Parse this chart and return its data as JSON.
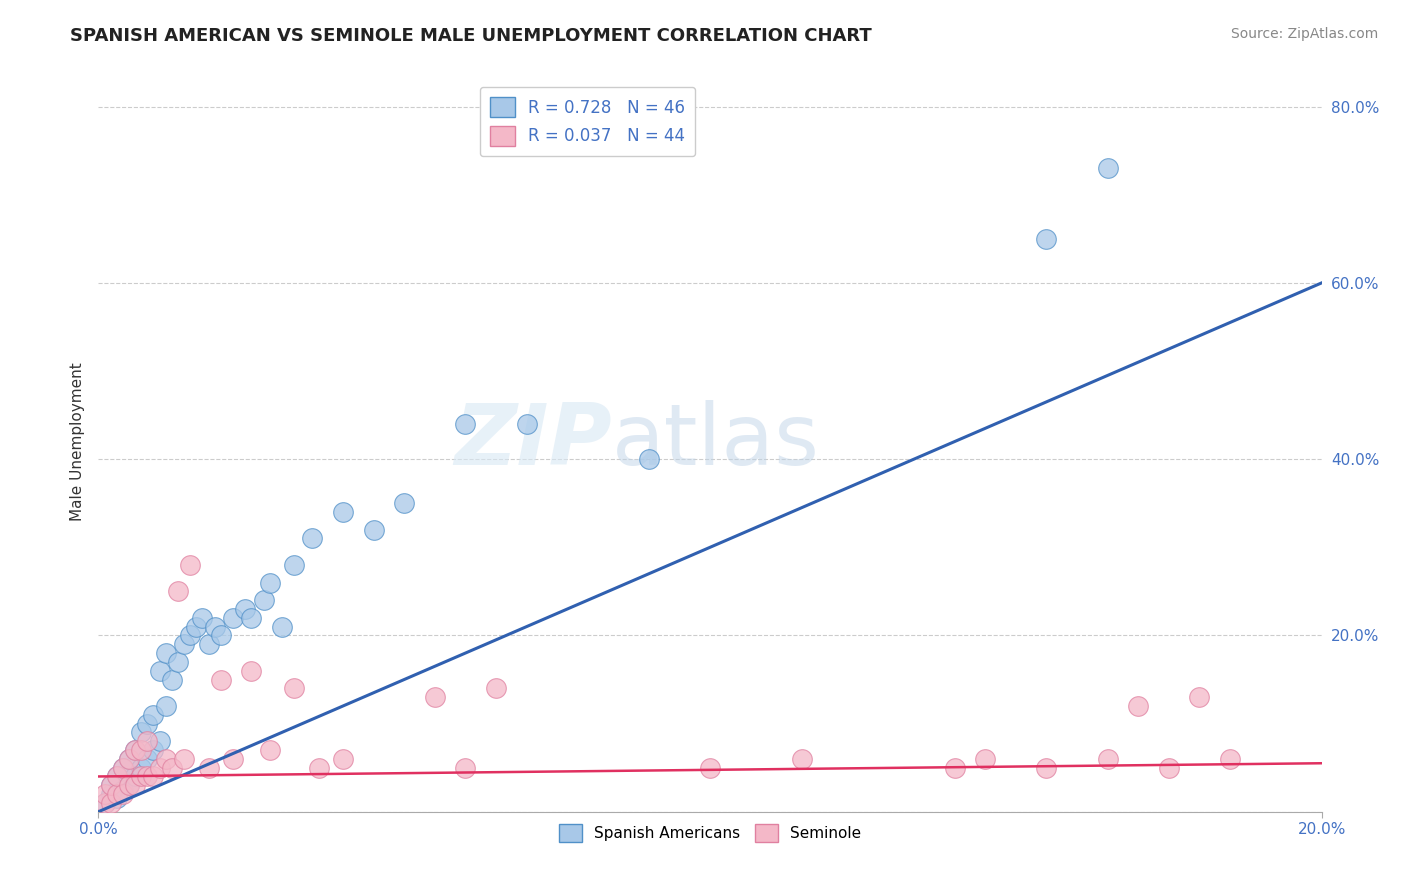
{
  "title": "SPANISH AMERICAN VS SEMINOLE MALE UNEMPLOYMENT CORRELATION CHART",
  "source": "Source: ZipAtlas.com",
  "ylabel": "Male Unemployment",
  "xlim": [
    0.0,
    0.2
  ],
  "ylim": [
    0.0,
    0.84
  ],
  "yticks": [
    0.0,
    0.2,
    0.4,
    0.6,
    0.8
  ],
  "ytick_labels": [
    "",
    "20.0%",
    "40.0%",
    "60.0%",
    "80.0%"
  ],
  "blue_R": 0.728,
  "blue_N": 46,
  "pink_R": 0.037,
  "pink_N": 44,
  "blue_color": "#a8c8e8",
  "pink_color": "#f4b8c8",
  "blue_edge_color": "#5090c8",
  "pink_edge_color": "#e080a0",
  "blue_line_color": "#3060b0",
  "pink_line_color": "#e03060",
  "legend_label_blue": "Spanish Americans",
  "legend_label_pink": "Seminole",
  "blue_line_x": [
    0.0,
    0.2
  ],
  "blue_line_y": [
    0.0,
    0.6
  ],
  "pink_line_x": [
    0.0,
    0.2
  ],
  "pink_line_y": [
    0.04,
    0.055
  ],
  "blue_scatter_x": [
    0.001,
    0.002,
    0.002,
    0.003,
    0.003,
    0.004,
    0.004,
    0.005,
    0.005,
    0.006,
    0.006,
    0.007,
    0.007,
    0.008,
    0.008,
    0.009,
    0.009,
    0.01,
    0.01,
    0.011,
    0.011,
    0.012,
    0.013,
    0.014,
    0.015,
    0.016,
    0.017,
    0.018,
    0.019,
    0.02,
    0.022,
    0.024,
    0.025,
    0.027,
    0.028,
    0.03,
    0.032,
    0.035,
    0.04,
    0.045,
    0.05,
    0.06,
    0.07,
    0.09,
    0.155,
    0.165
  ],
  "blue_scatter_y": [
    0.01,
    0.02,
    0.03,
    0.015,
    0.04,
    0.025,
    0.05,
    0.03,
    0.06,
    0.04,
    0.07,
    0.05,
    0.09,
    0.06,
    0.1,
    0.07,
    0.11,
    0.08,
    0.16,
    0.12,
    0.18,
    0.15,
    0.17,
    0.19,
    0.2,
    0.21,
    0.22,
    0.19,
    0.21,
    0.2,
    0.22,
    0.23,
    0.22,
    0.24,
    0.26,
    0.21,
    0.28,
    0.31,
    0.34,
    0.32,
    0.35,
    0.44,
    0.44,
    0.4,
    0.65,
    0.73
  ],
  "pink_scatter_x": [
    0.001,
    0.001,
    0.002,
    0.002,
    0.003,
    0.003,
    0.004,
    0.004,
    0.005,
    0.005,
    0.006,
    0.006,
    0.007,
    0.007,
    0.008,
    0.008,
    0.009,
    0.01,
    0.011,
    0.012,
    0.013,
    0.014,
    0.015,
    0.018,
    0.02,
    0.022,
    0.025,
    0.028,
    0.032,
    0.036,
    0.04,
    0.055,
    0.06,
    0.065,
    0.1,
    0.115,
    0.14,
    0.145,
    0.155,
    0.165,
    0.17,
    0.175,
    0.18,
    0.185
  ],
  "pink_scatter_y": [
    0.01,
    0.02,
    0.01,
    0.03,
    0.02,
    0.04,
    0.02,
    0.05,
    0.03,
    0.06,
    0.03,
    0.07,
    0.04,
    0.07,
    0.04,
    0.08,
    0.04,
    0.05,
    0.06,
    0.05,
    0.25,
    0.06,
    0.28,
    0.05,
    0.15,
    0.06,
    0.16,
    0.07,
    0.14,
    0.05,
    0.06,
    0.13,
    0.05,
    0.14,
    0.05,
    0.06,
    0.05,
    0.06,
    0.05,
    0.06,
    0.12,
    0.05,
    0.13,
    0.06
  ]
}
